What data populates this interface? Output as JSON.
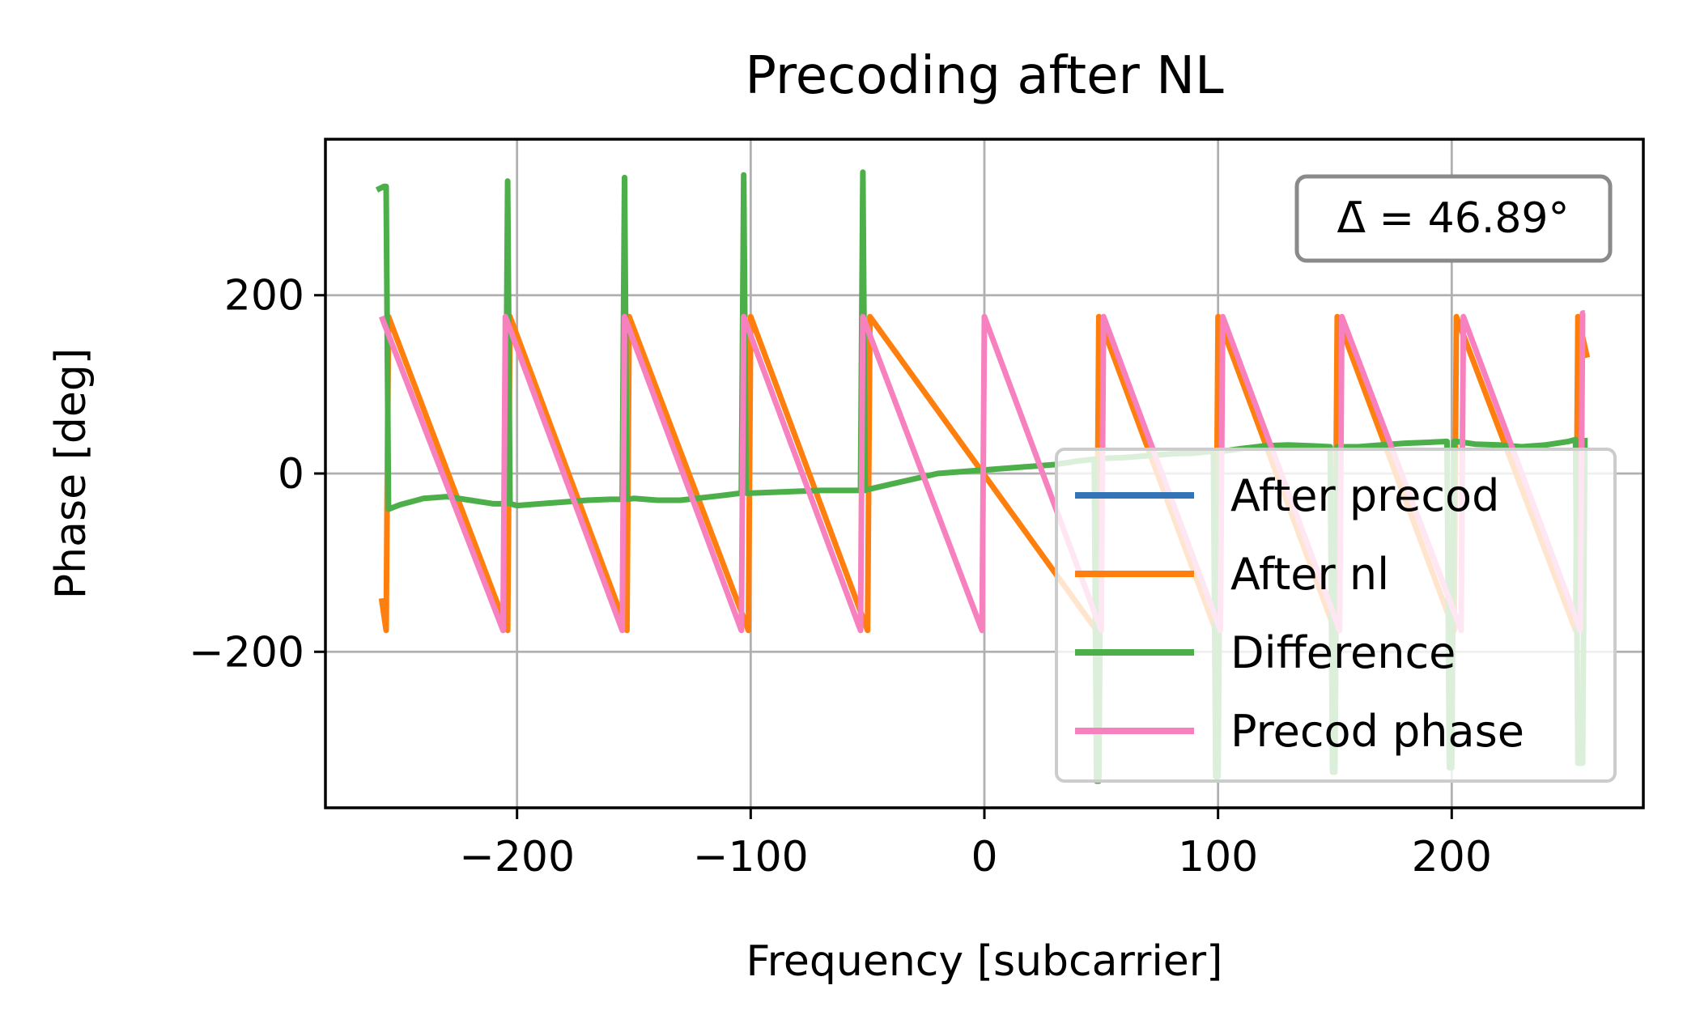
{
  "chart_data": {
    "type": "line",
    "title": "Precoding after NL",
    "xlabel": "Frequency [subcarrier]",
    "ylabel": "Phase [deg]",
    "xlim": [
      -282,
      282
    ],
    "ylim": [
      -375,
      375
    ],
    "xticks": [
      -200,
      -100,
      0,
      100,
      200
    ],
    "yticks": [
      -200,
      0,
      200
    ],
    "xtick_labels": [
      "−200",
      "−100",
      "0",
      "100",
      "200"
    ],
    "ytick_labels": [
      "−200",
      "0",
      "200"
    ],
    "grid": true,
    "legend_position": "lower-right",
    "annotation": "Δ̄ = 46.89°",
    "series": [
      {
        "name": "After precod",
        "color": "#3274b5",
        "x": [
          -258,
          -206,
          -205,
          -155,
          -154,
          -104,
          -103,
          -53,
          -52,
          -1,
          0,
          50,
          51,
          101,
          102,
          152,
          153,
          204,
          205,
          255
        ],
        "y": [
          176,
          -176,
          176,
          -176,
          176,
          -176,
          176,
          -176,
          176,
          -176,
          176,
          -176,
          176,
          -176,
          176,
          -176,
          176,
          -176,
          176,
          -176
        ]
      },
      {
        "name": "After nl",
        "color": "#ff7f0e",
        "x": [
          -258,
          -256,
          -255,
          -204,
          -203,
          -153,
          -152,
          -101,
          -100,
          -50,
          -49,
          48,
          49,
          99,
          100,
          150,
          151,
          201,
          202,
          253,
          254,
          258
        ],
        "y": [
          -140,
          -176,
          176,
          -176,
          176,
          -176,
          176,
          -176,
          176,
          -176,
          176,
          -176,
          176,
          -176,
          176,
          -176,
          176,
          -176,
          176,
          -176,
          176,
          130
        ]
      },
      {
        "name": "Difference",
        "color": "#4daf4a",
        "x": [
          -260,
          -257,
          -256,
          -255,
          -250,
          -240,
          -230,
          -220,
          -210,
          -205,
          -204,
          -203,
          -200,
          -190,
          -180,
          -170,
          -160,
          -155,
          -154,
          -153,
          -150,
          -140,
          -130,
          -120,
          -110,
          -104,
          -103,
          -102,
          -100,
          -90,
          -80,
          -70,
          -60,
          -53,
          -52,
          -51,
          -50,
          -40,
          -30,
          -20,
          -10,
          0,
          10,
          20,
          30,
          40,
          47,
          48,
          49,
          50,
          51,
          60,
          70,
          80,
          90,
          98,
          99,
          100,
          101,
          102,
          110,
          120,
          130,
          140,
          148,
          149,
          150,
          151,
          152,
          160,
          170,
          180,
          190,
          198,
          199,
          200,
          201,
          202,
          210,
          220,
          230,
          240,
          250,
          253,
          254,
          255,
          256,
          257
        ],
        "y": [
          318,
          322,
          322,
          -40,
          -35,
          -28,
          -26,
          -30,
          -34,
          -34,
          328,
          -34,
          -36,
          -34,
          -32,
          -30,
          -29,
          -29,
          332,
          -29,
          -28,
          -30,
          -30,
          -27,
          -24,
          -22,
          335,
          -22,
          -22,
          -21,
          -20,
          -19,
          -19,
          -19,
          338,
          -19,
          -18,
          -12,
          -6,
          0,
          2,
          4,
          6,
          8,
          10,
          14,
          16,
          -345,
          -345,
          16,
          17,
          18,
          20,
          22,
          23,
          25,
          -340,
          -340,
          25,
          25,
          28,
          31,
          32,
          31,
          30,
          -335,
          -335,
          30,
          30,
          30,
          32,
          34,
          35,
          36,
          -330,
          -330,
          36,
          36,
          33,
          32,
          30,
          32,
          36,
          38,
          -325,
          -325,
          -325,
          40
        ]
      },
      {
        "name": "Precod phase",
        "color": "#f781bf",
        "x": [
          -258,
          -206,
          -205,
          -155,
          -154,
          -104,
          -103,
          -53,
          -52,
          -1,
          0,
          50,
          51,
          101,
          102,
          152,
          153,
          204,
          205,
          255,
          256,
          257
        ],
        "y": [
          176,
          -176,
          176,
          -176,
          176,
          -176,
          176,
          -176,
          176,
          -176,
          176,
          -176,
          176,
          -176,
          176,
          -176,
          176,
          -176,
          176,
          -176,
          180,
          180
        ]
      }
    ]
  }
}
